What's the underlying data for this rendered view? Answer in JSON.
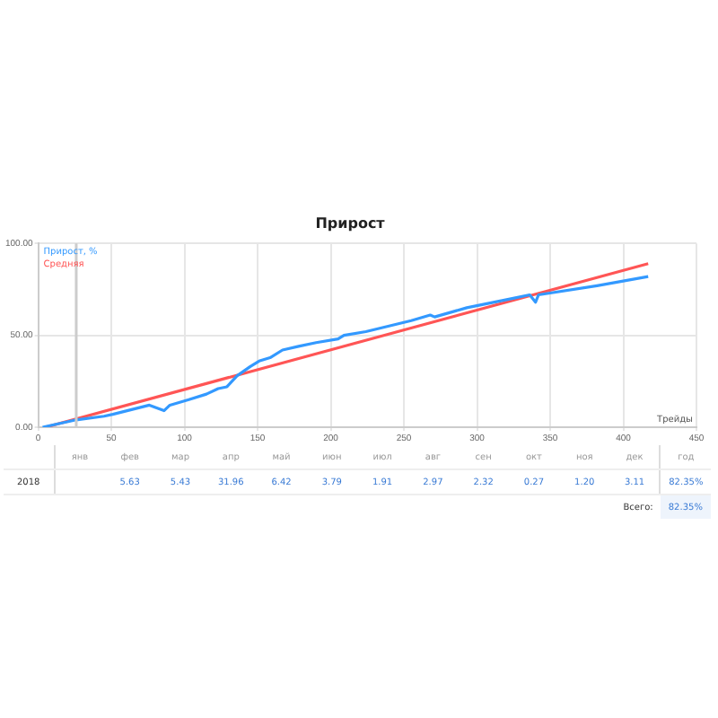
{
  "chart_data": {
    "type": "line",
    "title": "Прирост",
    "xlabel": "Трейды",
    "series": [
      {
        "name": "Прирост, %",
        "color": "#3399ff",
        "x": [
          3,
          26,
          45,
          51,
          76,
          86,
          90,
          103,
          115,
          123,
          129,
          136,
          145,
          151,
          159,
          167,
          178,
          190,
          205,
          209,
          224,
          255,
          268,
          271,
          293,
          324,
          336,
          340,
          342,
          382,
          417
        ],
        "values": [
          0,
          4,
          6,
          7,
          12,
          9,
          12,
          15,
          18,
          21,
          22,
          28,
          33,
          36,
          38,
          42,
          44,
          46,
          48,
          50,
          52,
          58,
          61,
          60,
          65,
          70,
          72,
          68,
          72,
          77,
          82
        ]
      },
      {
        "name": "Средняя",
        "color": "#ff5555",
        "x": [
          5,
          417
        ],
        "values": [
          0,
          89
        ]
      }
    ],
    "xlim": [
      0,
      450
    ],
    "xticks": [
      0,
      50,
      100,
      150,
      200,
      250,
      300,
      350,
      400,
      450
    ],
    "ylim": [
      0,
      100
    ],
    "yticks": [
      {
        "value": 0,
        "label": "0.00"
      },
      {
        "value": 50,
        "label": "50.00"
      },
      {
        "value": 100,
        "label": "100.00"
      }
    ],
    "ref_lines": [
      {
        "axis": "x",
        "value": 26,
        "color": "#cccccc"
      }
    ],
    "grid": true,
    "legend": "top left",
    "marker": "none",
    "line_style": "solid",
    "annotations": [
      "янв",
      "фев",
      "мар",
      "апр",
      "май",
      "июн",
      "июл",
      "авг",
      "сен",
      "окт",
      "ноя",
      "дек",
      "год",
      "2018",
      "5.63",
      "5.43",
      "31.96",
      "6.42",
      "3.79",
      "1.91",
      "2.97",
      "2.32",
      "0.27",
      "1.20",
      "3.11",
      "82.35%",
      "Всего:",
      "82.35%"
    ]
  }
}
